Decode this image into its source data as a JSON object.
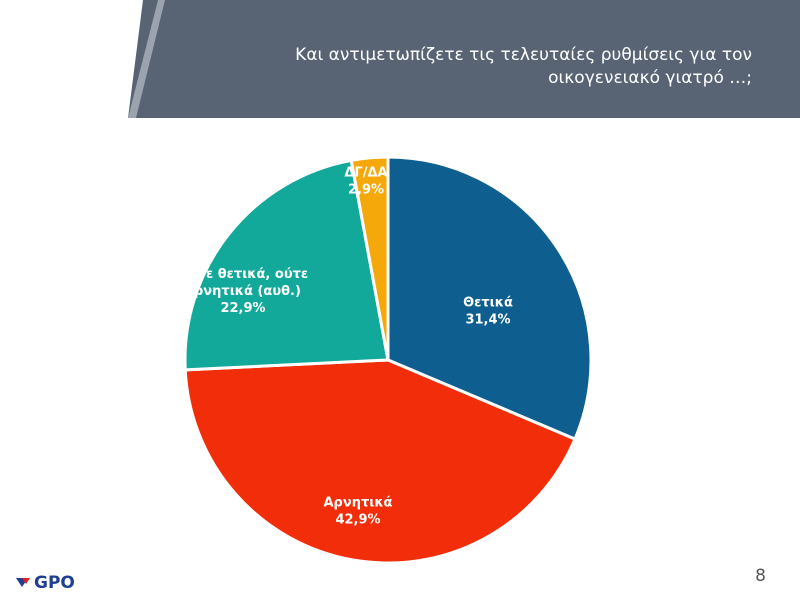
{
  "header": {
    "title": "Και αντιμετωπίζετε τις τελευταίες ρυθμίσεις για τον\nοικογενειακό γιατρό …;"
  },
  "chart_data": {
    "type": "pie",
    "title": "",
    "slices": [
      {
        "label": "Θετικά",
        "value": 31.4,
        "value_label": "31,4%",
        "color": "#0e5f8f"
      },
      {
        "label": "Αρνητικά",
        "value": 42.9,
        "value_label": "42,9%",
        "color": "#f22d0a"
      },
      {
        "label": "Ούτε θετικά, ούτε αρνητικά (αυθ.)",
        "value": 22.9,
        "value_label": "22,9%",
        "color": "#12a99a"
      },
      {
        "label": "ΔΓ/ΔΑ",
        "value": 2.9,
        "value_label": "2,9%",
        "color": "#f5a80a"
      }
    ]
  },
  "footer": {
    "logo_text": "GPO",
    "page_number": "8"
  }
}
